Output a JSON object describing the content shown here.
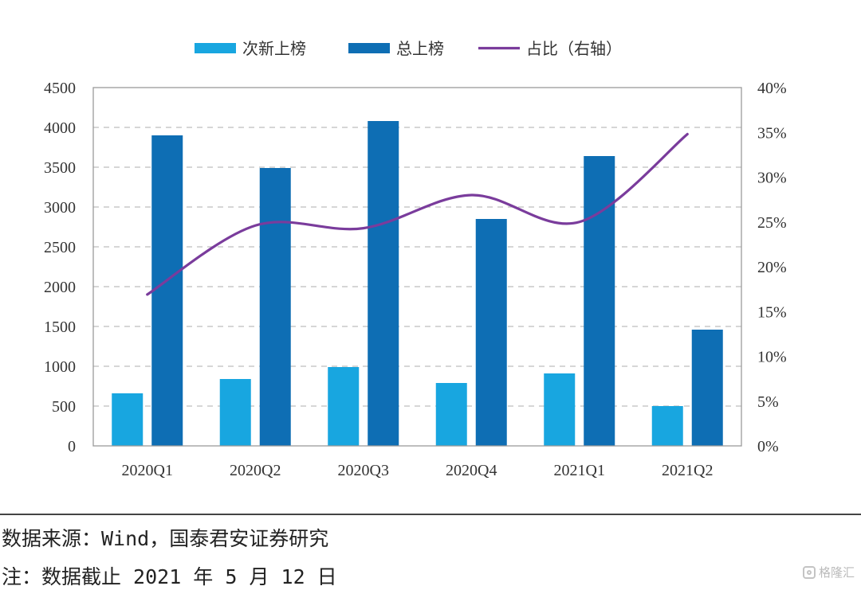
{
  "chart_data": {
    "type": "bar",
    "categories": [
      "2020Q1",
      "2020Q2",
      "2020Q3",
      "2020Q4",
      "2021Q1",
      "2021Q2"
    ],
    "series": [
      {
        "name": "次新上榜",
        "type": "bar",
        "axis": "left",
        "color": "#18a6e0",
        "values": [
          660,
          840,
          990,
          790,
          910,
          500
        ]
      },
      {
        "name": "总上榜",
        "type": "bar",
        "axis": "left",
        "color": "#0e6eb4",
        "values": [
          3900,
          3490,
          4080,
          2850,
          3640,
          1460
        ]
      },
      {
        "name": "占比（右轴）",
        "type": "line",
        "axis": "right",
        "color": "#7a3c9c",
        "values": [
          16.9,
          24.6,
          24.3,
          28.0,
          25.0,
          34.8
        ]
      }
    ],
    "y_left": {
      "min": 0,
      "max": 4500,
      "ticks": [
        "0",
        "500",
        "1000",
        "1500",
        "2000",
        "2500",
        "3000",
        "3500",
        "4000",
        "4500"
      ]
    },
    "y_right": {
      "min": 0,
      "max": 40,
      "ticks": [
        "0%",
        "5%",
        "10%",
        "15%",
        "20%",
        "25%",
        "30%",
        "35%",
        "40%"
      ]
    },
    "grid": "dashed-horizontal",
    "legend_position": "top-center"
  },
  "footer": {
    "source": "数据来源：Wind，国泰君安证券研究",
    "note": "注：数据截止 2021 年 5 月 12 日"
  },
  "watermark": {
    "text": "格隆汇"
  }
}
